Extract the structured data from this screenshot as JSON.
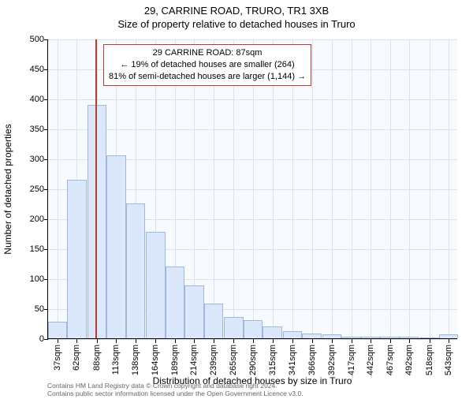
{
  "title_line1": "29, CARRINE ROAD, TRURO, TR1 3XB",
  "title_line2": "Size of property relative to detached houses in Truro",
  "ylabel": "Number of detached properties",
  "xlabel": "Distribution of detached houses by size in Truro",
  "chart": {
    "type": "histogram",
    "background_color": "#f7faff",
    "grid_color": "#d9e1ec",
    "axis_color": "#000000",
    "bar_fill": "#dbe8fb",
    "bar_stroke": "#9fb7d9",
    "marker_line_color": "#c0392b",
    "marker_x": 87,
    "ylim": [
      0,
      500
    ],
    "ytick_step": 50,
    "xlim": [
      25,
      555
    ],
    "xticks": [
      37,
      62,
      88,
      113,
      138,
      164,
      189,
      214,
      239,
      265,
      290,
      315,
      341,
      366,
      392,
      417,
      442,
      467,
      492,
      518,
      543
    ],
    "xtick_suffix": "sqm",
    "bar_bin_width": 25,
    "bars": [
      {
        "x": 37,
        "y": 28
      },
      {
        "x": 62,
        "y": 265
      },
      {
        "x": 88,
        "y": 390
      },
      {
        "x": 113,
        "y": 305
      },
      {
        "x": 138,
        "y": 225
      },
      {
        "x": 164,
        "y": 178
      },
      {
        "x": 189,
        "y": 120
      },
      {
        "x": 214,
        "y": 88
      },
      {
        "x": 239,
        "y": 58
      },
      {
        "x": 265,
        "y": 36
      },
      {
        "x": 290,
        "y": 30
      },
      {
        "x": 315,
        "y": 20
      },
      {
        "x": 341,
        "y": 12
      },
      {
        "x": 366,
        "y": 8
      },
      {
        "x": 392,
        "y": 6
      },
      {
        "x": 417,
        "y": 3
      },
      {
        "x": 442,
        "y": 3
      },
      {
        "x": 467,
        "y": 2
      },
      {
        "x": 492,
        "y": 2
      },
      {
        "x": 518,
        "y": 1
      },
      {
        "x": 543,
        "y": 6
      }
    ]
  },
  "callout": {
    "line1": "29 CARRINE ROAD: 87sqm",
    "line2": "← 19% of detached houses are smaller (264)",
    "line3": "81% of semi-detached houses are larger (1,144) →",
    "border_color": "#c0392b"
  },
  "attribution": {
    "line1": "Contains HM Land Registry data © Crown copyright and database right 2024.",
    "line2": "Contains public sector information licensed under the Open Government Licence v3.0."
  }
}
